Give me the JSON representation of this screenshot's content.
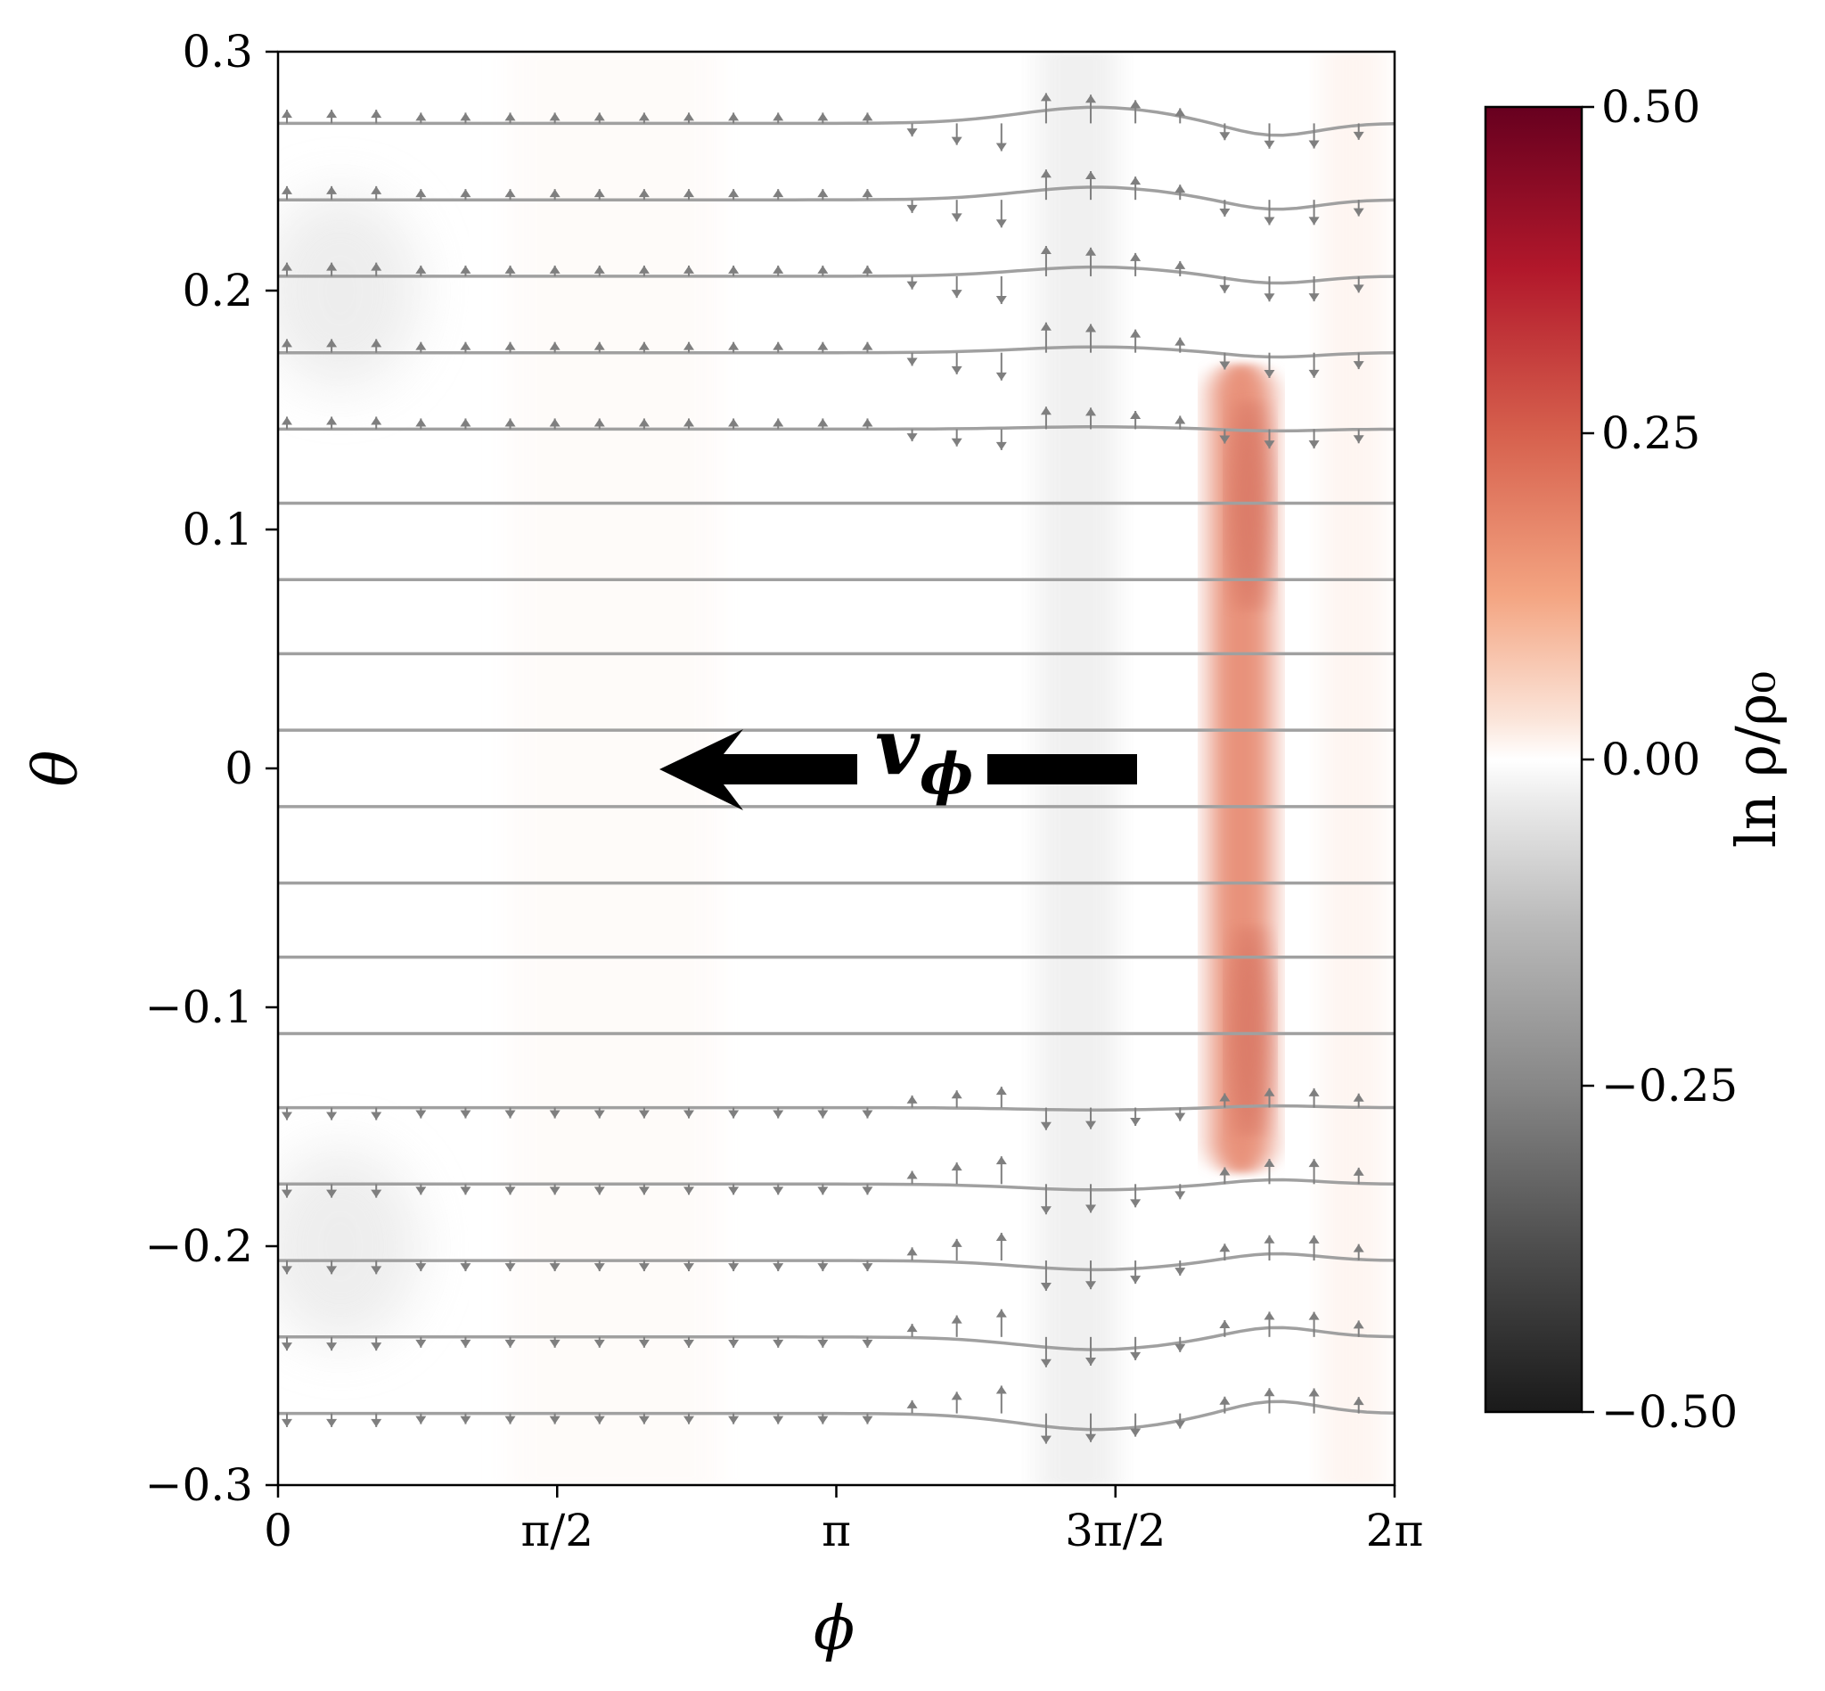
{
  "chart_data": {
    "type": "heatmap",
    "title": "",
    "xlabel": "ϕ",
    "ylabel": "θ",
    "xlim": [
      0,
      6.2832
    ],
    "ylim": [
      -0.3,
      0.3
    ],
    "x_ticks": [
      {
        "value": 0,
        "label": "0"
      },
      {
        "value": 1.5708,
        "label": "π/2"
      },
      {
        "value": 3.1416,
        "label": "π"
      },
      {
        "value": 4.7124,
        "label": "3π/2"
      },
      {
        "value": 6.2832,
        "label": "2π"
      }
    ],
    "y_ticks": [
      {
        "value": 0.3,
        "label": "0.3"
      },
      {
        "value": 0.2,
        "label": "0.2"
      },
      {
        "value": 0.1,
        "label": "0.1"
      },
      {
        "value": 0,
        "label": "0"
      },
      {
        "value": -0.1,
        "label": "−0.1"
      },
      {
        "value": -0.2,
        "label": "−0.2"
      },
      {
        "value": -0.3,
        "label": "−0.3"
      }
    ],
    "colorbar": {
      "label": "ln ρ/ρ₀",
      "range": [
        -0.5,
        0.5
      ],
      "ticks": [
        {
          "value": 0.5,
          "label": "0.50"
        },
        {
          "value": 0.25,
          "label": "0.25"
        },
        {
          "value": 0,
          "label": "0.00"
        },
        {
          "value": -0.25,
          "label": "−0.25"
        },
        {
          "value": -0.5,
          "label": "−0.50"
        }
      ],
      "colormap": "RdGy_r"
    },
    "density_features": [
      {
        "kind": "ridge",
        "phi_center": 5.42,
        "phi_width": 0.35,
        "theta_range": [
          -0.17,
          0.17
        ],
        "peak_value": 0.22
      },
      {
        "kind": "trough",
        "phi_center": 4.5,
        "phi_width": 0.45,
        "theta_range": [
          -0.3,
          0.3
        ],
        "peak_value": -0.04
      },
      {
        "kind": "band",
        "phi_center": 1.9,
        "phi_width": 1.2,
        "theta_range": [
          -0.3,
          0.3
        ],
        "peak_value": 0.015
      },
      {
        "kind": "band",
        "phi_center": 6.05,
        "phi_width": 0.35,
        "theta_range": [
          -0.3,
          0.3
        ],
        "peak_value": 0.04
      }
    ],
    "streamlines_theta": [
      0.27,
      0.238,
      0.206,
      0.174,
      0.142,
      0.111,
      0.079,
      0.048,
      0.016,
      -0.016,
      -0.048,
      -0.079,
      -0.111,
      -0.142,
      -0.174,
      -0.206,
      -0.238,
      -0.27
    ],
    "streamline_color": "#a0a0a0",
    "quiver_color": "#7f7f7f",
    "annotation": {
      "text": "v",
      "subscript": "ϕ",
      "direction": "negative-phi",
      "theta": 0
    }
  }
}
